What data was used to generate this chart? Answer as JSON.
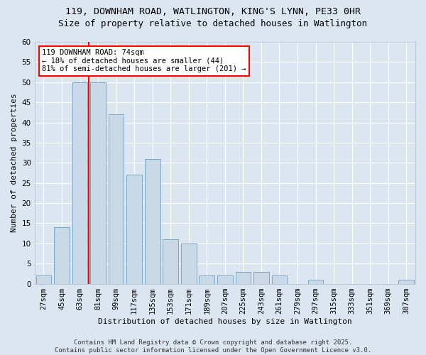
{
  "title_line1": "119, DOWNHAM ROAD, WATLINGTON, KING'S LYNN, PE33 0HR",
  "title_line2": "Size of property relative to detached houses in Watlington",
  "xlabel": "Distribution of detached houses by size in Watlington",
  "ylabel": "Number of detached properties",
  "categories": [
    "27sqm",
    "45sqm",
    "63sqm",
    "81sqm",
    "99sqm",
    "117sqm",
    "135sqm",
    "153sqm",
    "171sqm",
    "189sqm",
    "207sqm",
    "225sqm",
    "243sqm",
    "261sqm",
    "279sqm",
    "297sqm",
    "315sqm",
    "333sqm",
    "351sqm",
    "369sqm",
    "387sqm"
  ],
  "values": [
    2,
    14,
    50,
    50,
    42,
    27,
    31,
    11,
    10,
    2,
    2,
    3,
    3,
    2,
    0,
    1,
    0,
    0,
    0,
    0,
    1
  ],
  "bar_color": "#c9d9e8",
  "bar_edge_color": "#7aa8c8",
  "vline_x_index": 3,
  "vline_color": "red",
  "annotation_text": "119 DOWNHAM ROAD: 74sqm\n← 18% of detached houses are smaller (44)\n81% of semi-detached houses are larger (201) →",
  "annotation_box_color": "white",
  "annotation_box_edge_color": "red",
  "ylim": [
    0,
    60
  ],
  "yticks": [
    0,
    5,
    10,
    15,
    20,
    25,
    30,
    35,
    40,
    45,
    50,
    55,
    60
  ],
  "background_color": "#dce6f0",
  "plot_bg_color": "#dce6f0",
  "grid_color": "#ffffff",
  "footnote": "Contains HM Land Registry data © Crown copyright and database right 2025.\nContains public sector information licensed under the Open Government Licence v3.0.",
  "title_fontsize": 9.5,
  "subtitle_fontsize": 9,
  "axis_label_fontsize": 8,
  "tick_fontsize": 7.5,
  "annotation_fontsize": 7.5,
  "footnote_fontsize": 6.5
}
